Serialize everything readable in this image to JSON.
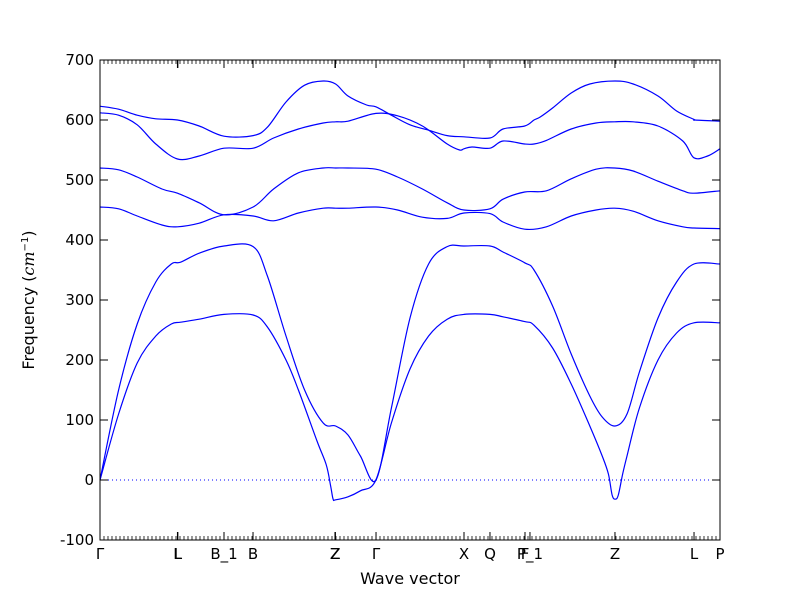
{
  "chart_data": {
    "type": "line",
    "title": "",
    "xlabel": "Wave vector",
    "ylabel": "Frequency (cm⁻¹)",
    "ylabel_main": "Frequency (",
    "ylabel_unit": "cm",
    "ylabel_exp": "−1",
    "ylabel_close": ")",
    "ylim": [
      -100,
      700
    ],
    "xlim": [
      0,
      1
    ],
    "grid": false,
    "y_ticks": [
      -100,
      0,
      100,
      200,
      300,
      400,
      500,
      600,
      700
    ],
    "zero_line": 0,
    "line_color": "#0000ff",
    "x_ticks": [
      {
        "label": "Γ",
        "x": 0.0
      },
      {
        "label": "L",
        "x": 0.1249
      },
      {
        "label": "L",
        "x": 0.1256
      },
      {
        "label": "B_1",
        "x": 0.2
      },
      {
        "label": "B",
        "x": 0.2468
      },
      {
        "label": "Z",
        "x": 0.379
      },
      {
        "label": "Z",
        "x": 0.3797
      },
      {
        "label": "Γ",
        "x": 0.4452
      },
      {
        "label": "X",
        "x": 0.5871
      },
      {
        "label": "Q",
        "x": 0.629
      },
      {
        "label": "F",
        "x": 0.6855
      },
      {
        "label": "P_1",
        "x": 0.6935
      },
      {
        "label": "Z",
        "x": 0.8306
      },
      {
        "label": "L",
        "x": 0.9581
      },
      {
        "label": "P",
        "x": 1.0
      }
    ],
    "series": [
      {
        "x": [
          0,
          0.03,
          0.06,
          0.09,
          0.115,
          0.13,
          0.16,
          0.2,
          0.247,
          0.27,
          0.3,
          0.32,
          0.35,
          0.365,
          0.372,
          0.376,
          0.38,
          0.4,
          0.42,
          0.445,
          0.47,
          0.5,
          0.53,
          0.56,
          0.587,
          0.629,
          0.65,
          0.685,
          0.7,
          0.73,
          0.76,
          0.79,
          0.81,
          0.82,
          0.826,
          0.831,
          0.836,
          0.843,
          0.85,
          0.87,
          0.9,
          0.93,
          0.958,
          1.0
        ],
        "y": [
          0,
          110,
          195,
          240,
          260,
          263,
          268,
          276,
          275,
          255,
          200,
          150,
          65,
          25,
          -10,
          -32,
          -33,
          -28,
          -18,
          0,
          95,
          185,
          240,
          268,
          276,
          276,
          272,
          264,
          258,
          220,
          160,
          90,
          40,
          10,
          -25,
          -32,
          -25,
          10,
          40,
          120,
          200,
          245,
          262,
          262
        ]
      },
      {
        "x": [
          0,
          0.03,
          0.06,
          0.09,
          0.115,
          0.13,
          0.16,
          0.2,
          0.247,
          0.27,
          0.3,
          0.33,
          0.36,
          0.38,
          0.4,
          0.42,
          0.445,
          0.47,
          0.5,
          0.53,
          0.56,
          0.587,
          0.629,
          0.65,
          0.685,
          0.7,
          0.73,
          0.76,
          0.79,
          0.81,
          0.8306,
          0.85,
          0.87,
          0.9,
          0.93,
          0.958,
          1.0
        ],
        "y": [
          0,
          150,
          260,
          330,
          360,
          363,
          378,
          390,
          389,
          340,
          240,
          150,
          95,
          90,
          75,
          40,
          0,
          120,
          270,
          360,
          389,
          390,
          390,
          380,
          362,
          350,
          290,
          210,
          140,
          105,
          90,
          110,
          180,
          270,
          330,
          360,
          360
        ]
      },
      {
        "x": [
          0,
          0.03,
          0.06,
          0.1,
          0.125,
          0.16,
          0.2,
          0.247,
          0.28,
          0.32,
          0.36,
          0.38,
          0.4,
          0.445,
          0.48,
          0.52,
          0.56,
          0.587,
          0.629,
          0.65,
          0.685,
          0.72,
          0.76,
          0.8,
          0.83,
          0.86,
          0.9,
          0.94,
          0.958,
          1.0
        ],
        "y": [
          455,
          452,
          440,
          425,
          422,
          428,
          442,
          440,
          432,
          445,
          453,
          453,
          453,
          455,
          450,
          438,
          436,
          445,
          444,
          430,
          418,
          422,
          440,
          450,
          453,
          448,
          432,
          422,
          420,
          419
        ]
      },
      {
        "x": [
          0,
          0.03,
          0.06,
          0.1,
          0.125,
          0.16,
          0.2,
          0.247,
          0.28,
          0.32,
          0.36,
          0.38,
          0.4,
          0.445,
          0.48,
          0.52,
          0.56,
          0.587,
          0.629,
          0.65,
          0.685,
          0.72,
          0.76,
          0.8,
          0.83,
          0.86,
          0.9,
          0.94,
          0.958,
          1.0
        ],
        "y": [
          520,
          517,
          505,
          485,
          478,
          462,
          442,
          455,
          485,
          512,
          520,
          520,
          520,
          518,
          505,
          485,
          462,
          450,
          452,
          468,
          480,
          482,
          502,
          518,
          520,
          515,
          498,
          482,
          478,
          482
        ]
      },
      {
        "x": [
          0,
          0.03,
          0.06,
          0.09,
          0.125,
          0.16,
          0.2,
          0.247,
          0.28,
          0.32,
          0.36,
          0.38,
          0.4,
          0.445,
          0.48,
          0.52,
          0.56,
          0.58,
          0.587,
          0.6,
          0.629,
          0.65,
          0.685,
          0.7,
          0.72,
          0.76,
          0.8,
          0.83,
          0.86,
          0.9,
          0.94,
          0.958,
          0.98,
          1.0
        ],
        "y": [
          612,
          608,
          592,
          560,
          535,
          540,
          553,
          553,
          570,
          585,
          595,
          597,
          598,
          611,
          607,
          590,
          560,
          550,
          552,
          555,
          553,
          565,
          560,
          560,
          566,
          585,
          595,
          597,
          597,
          590,
          565,
          537,
          540,
          552
        ]
      },
      {
        "x": [
          0,
          0.03,
          0.06,
          0.09,
          0.125,
          0.16,
          0.2,
          0.247,
          0.27,
          0.3,
          0.33,
          0.36,
          0.38,
          0.4,
          0.43,
          0.445,
          0.47,
          0.5,
          0.53,
          0.56,
          0.587,
          0.629,
          0.65,
          0.685,
          0.7,
          0.71,
          0.73,
          0.76,
          0.79,
          0.8306,
          0.86,
          0.9,
          0.93,
          0.958,
          0.96,
          1.0
        ],
        "y": [
          623,
          618,
          608,
          602,
          600,
          590,
          573,
          574,
          588,
          630,
          658,
          665,
          660,
          640,
          625,
          622,
          608,
          592,
          583,
          574,
          572,
          570,
          585,
          590,
          600,
          605,
          620,
          645,
          660,
          665,
          660,
          640,
          615,
          601,
          600,
          598
        ]
      }
    ]
  }
}
